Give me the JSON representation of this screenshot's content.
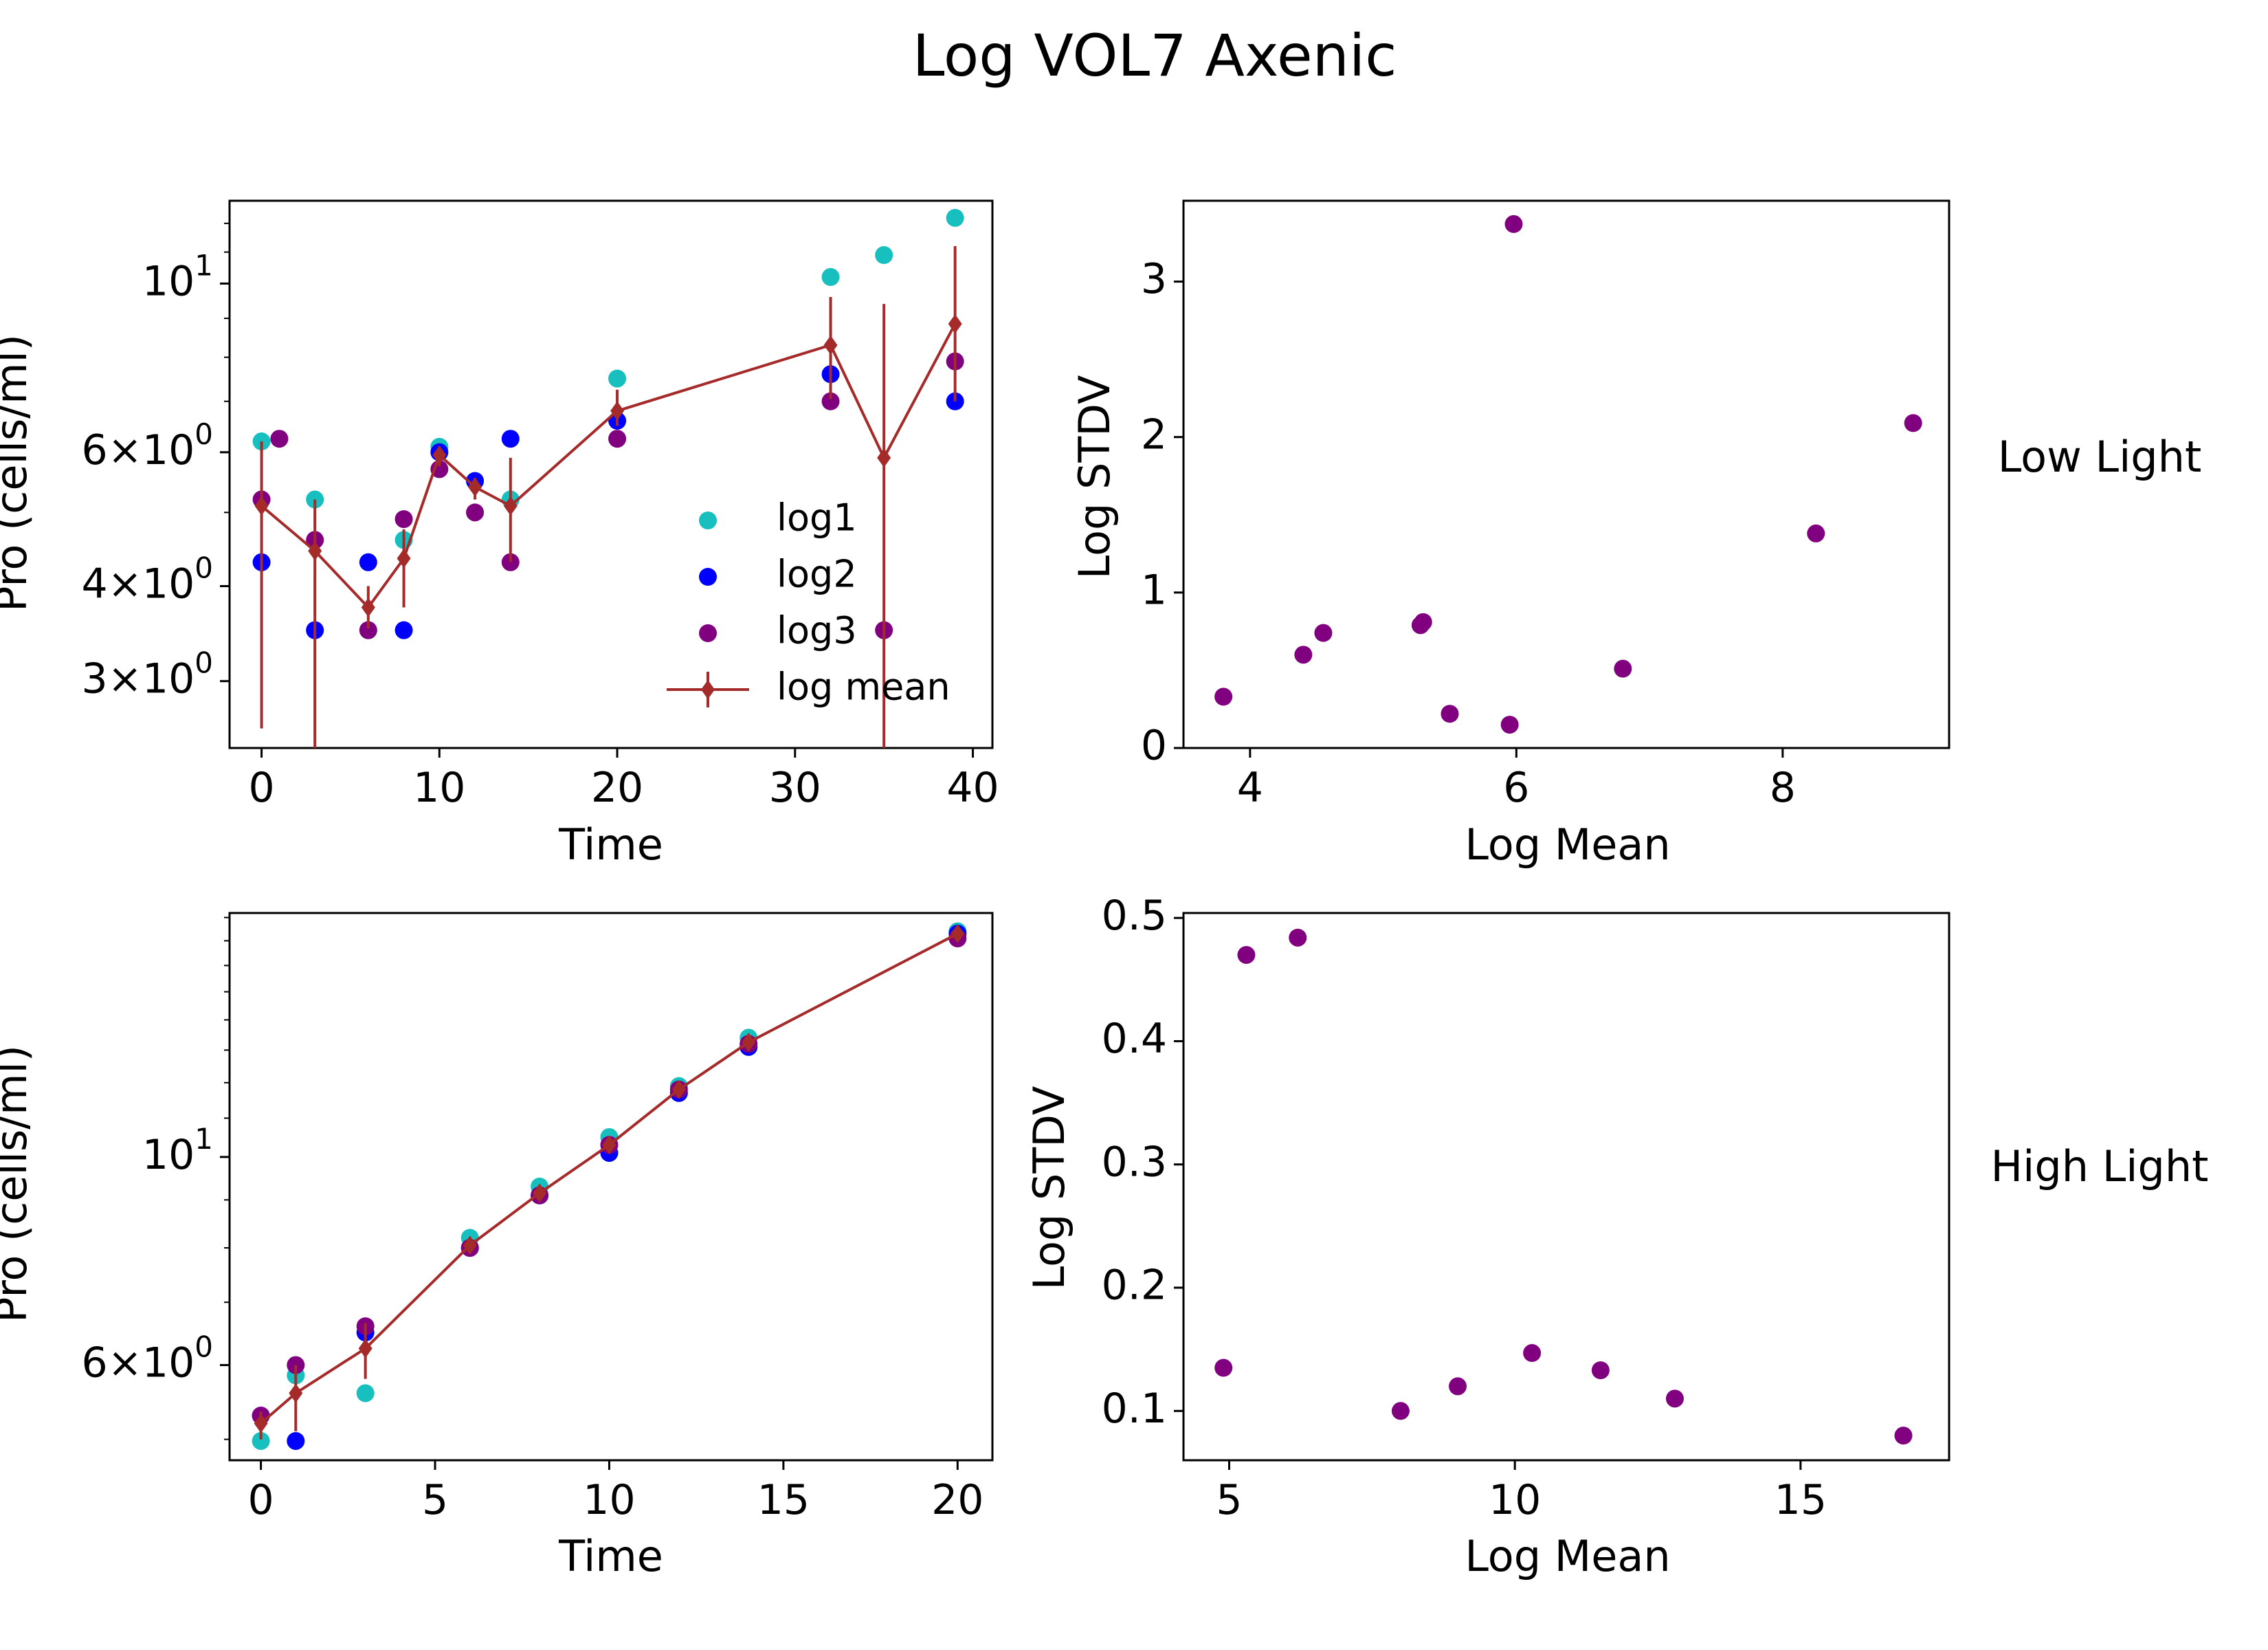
{
  "figure": {
    "title": "Log VOL7 Axenic",
    "row_labels": [
      "Low Light",
      "High Light"
    ]
  },
  "colors": {
    "log1": "#17bfbf",
    "log2": "#0000ff",
    "log3": "#800080",
    "mean": "#a52a2a",
    "axes": "#000000"
  },
  "chart_data": [
    {
      "type": "scatter",
      "panel": "top-left",
      "xlabel": "Time",
      "ylabel": "Pro (cells/ml)",
      "xlim": [
        -1.8,
        41.1
      ],
      "ylim": [
        2.45,
        12.85
      ],
      "yscale": "log",
      "xticks": [
        0,
        10,
        20,
        30,
        40
      ],
      "yticks": [
        {
          "value": 10,
          "label": "10^1"
        },
        {
          "value": 6,
          "label": "6×10^0"
        },
        {
          "value": 4,
          "label": "4×10^0"
        },
        {
          "value": 3,
          "label": "3×10^0"
        }
      ],
      "legend": {
        "placement": "lower right",
        "entries": [
          "log1",
          "log2",
          " log3",
          "log mean"
        ]
      },
      "series": [
        {
          "name": "log1",
          "marker": "circle",
          "color": "#17bfbf",
          "x": [
            0,
            3,
            6,
            8,
            10,
            12,
            14,
            20,
            32,
            35,
            39
          ],
          "y": [
            6.2,
            5.2,
            3.5,
            4.6,
            6.1,
            5.5,
            5.2,
            7.5,
            10.2,
            10.9,
            12.2
          ]
        },
        {
          "name": "log2",
          "marker": "circle",
          "color": "#0000ff",
          "x": [
            0,
            3,
            6,
            8,
            10,
            12,
            14,
            20,
            32,
            39
          ],
          "y": [
            4.3,
            3.5,
            4.3,
            3.5,
            6.0,
            5.5,
            6.25,
            6.6,
            7.6,
            7.0
          ]
        },
        {
          "name": " log3",
          "marker": "circle",
          "color": "#800080",
          "x": [
            0,
            1,
            3,
            6,
            8,
            10,
            12,
            14,
            20,
            32,
            35,
            39
          ],
          "y": [
            5.2,
            6.25,
            4.6,
            3.5,
            4.9,
            5.7,
            5.0,
            4.3,
            6.25,
            7.0,
            3.5,
            7.9
          ]
        },
        {
          "name": "log mean",
          "marker": "diamond",
          "line": true,
          "color": "#a52a2a",
          "x": [
            0,
            3,
            6,
            8,
            10,
            12,
            14,
            20,
            32,
            35,
            39
          ],
          "y": [
            5.1,
            4.45,
            3.75,
            4.35,
            5.95,
            5.4,
            5.1,
            6.8,
            8.3,
            5.9,
            8.85
          ],
          "err_low": [
            2.6,
            2.0,
            3.52,
            3.75,
            5.75,
            5.2,
            4.3,
            6.5,
            7.05,
            2.0,
            7.0
          ],
          "err_high": [
            6.2,
            5.2,
            4.0,
            4.75,
            6.1,
            5.55,
            5.9,
            7.25,
            9.6,
            9.4,
            11.2
          ]
        }
      ]
    },
    {
      "type": "scatter",
      "panel": "top-right",
      "xlabel": "Log Mean",
      "ylabel": "Log STDV",
      "xlim": [
        3.5,
        9.25
      ],
      "ylim": [
        0,
        3.52
      ],
      "xticks": [
        4,
        6,
        8
      ],
      "yticks": [
        0,
        1,
        2,
        3
      ],
      "series": [
        {
          "color": "#800080",
          "x": [
            3.8,
            4.4,
            4.55,
            5.28,
            5.3,
            5.5,
            5.95,
            5.98,
            6.8,
            8.25,
            8.98
          ],
          "y": [
            0.33,
            0.6,
            0.74,
            0.79,
            0.81,
            0.22,
            0.15,
            3.37,
            0.51,
            1.38,
            2.09
          ]
        }
      ]
    },
    {
      "type": "scatter",
      "panel": "bottom-left",
      "xlabel": "Time",
      "ylabel": "Pro (cells/ml)",
      "xlim": [
        -0.9,
        21.0
      ],
      "ylim": [
        4.75,
        18.2
      ],
      "yscale": "log",
      "xticks": [
        0,
        5,
        10,
        15,
        20
      ],
      "yticks": [
        {
          "value": 10,
          "label": "10^1"
        },
        {
          "value": 6,
          "label": "6×10^0"
        }
      ],
      "series": [
        {
          "name": "log1",
          "marker": "circle",
          "color": "#17bfbf",
          "x": [
            0,
            1,
            3,
            6,
            8,
            10,
            12,
            14,
            20
          ],
          "y": [
            4.98,
            5.85,
            5.6,
            8.2,
            9.3,
            10.5,
            11.9,
            13.4,
            17.4
          ]
        },
        {
          "name": "log2",
          "marker": "circle",
          "color": "#0000ff",
          "x": [
            0,
            1,
            3,
            6,
            8,
            10,
            12,
            14,
            20
          ],
          "y": [
            5.3,
            4.98,
            6.5,
            8.0,
            9.1,
            10.1,
            11.7,
            13.1,
            17.3
          ]
        },
        {
          "name": "log3",
          "marker": "circle",
          "color": "#800080",
          "x": [
            0,
            1,
            3,
            6,
            8,
            10,
            12,
            14,
            20
          ],
          "y": [
            5.3,
            6.0,
            6.6,
            8.0,
            9.1,
            10.3,
            11.8,
            13.2,
            17.1
          ]
        },
        {
          "name": "log mean",
          "marker": "diamond",
          "line": true,
          "color": "#a52a2a",
          "x": [
            0,
            1,
            3,
            6,
            8,
            10,
            12,
            14,
            20
          ],
          "y": [
            5.2,
            5.6,
            6.25,
            8.05,
            9.15,
            10.3,
            11.8,
            13.25,
            17.3
          ],
          "err_low": [
            5.0,
            5.1,
            5.8,
            7.9,
            9.05,
            10.1,
            11.7,
            13.1,
            17.0
          ],
          "err_high": [
            5.35,
            6.0,
            6.65,
            8.2,
            9.3,
            10.5,
            11.9,
            13.4,
            17.5
          ]
        }
      ]
    },
    {
      "type": "scatter",
      "panel": "bottom-right",
      "xlabel": "Log Mean",
      "ylabel": "Log STDV",
      "xlim": [
        4.2,
        17.6
      ],
      "ylim": [
        0.06,
        0.504
      ],
      "xticks": [
        5,
        10,
        15
      ],
      "yticks": [
        0.1,
        0.2,
        0.3,
        0.4,
        0.5
      ],
      "series": [
        {
          "color": "#800080",
          "x": [
            4.9,
            5.3,
            6.2,
            8.0,
            9.0,
            10.3,
            11.5,
            12.8,
            16.8
          ],
          "y": [
            0.135,
            0.47,
            0.484,
            0.1,
            0.12,
            0.147,
            0.133,
            0.11,
            0.08
          ]
        }
      ]
    }
  ]
}
